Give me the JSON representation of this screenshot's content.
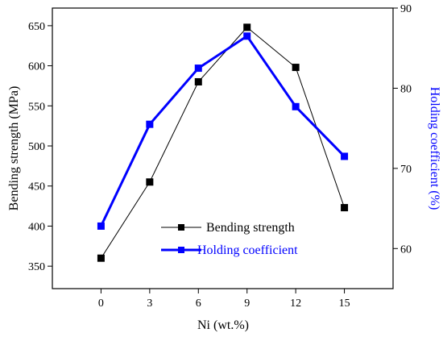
{
  "chart_data": {
    "type": "line",
    "x": [
      0,
      3,
      6,
      9,
      12,
      15
    ],
    "x_ticks": [
      "0",
      "3",
      "6",
      "9",
      "12",
      "15"
    ],
    "xlabel": "Ni (wt.%)",
    "xlim": [
      -3,
      18
    ],
    "left_axis": {
      "label": "Bending strength (MPa)",
      "ylim": [
        322,
        672
      ],
      "ticks": [
        "350",
        "400",
        "450",
        "500",
        "550",
        "600",
        "650"
      ],
      "color": "#000000"
    },
    "right_axis": {
      "label": "Holding coefficient (%)",
      "ylim": [
        55,
        90
      ],
      "ticks": [
        "60",
        "70",
        "80",
        "90"
      ],
      "color": "#0000ff"
    },
    "series": [
      {
        "name": "Bending strength",
        "axis": "left",
        "color": "#000000",
        "values": [
          360,
          455,
          580,
          648,
          598,
          423
        ]
      },
      {
        "name": "Holding coefficient",
        "axis": "right",
        "color": "#0000ff",
        "values": [
          62.8,
          75.5,
          82.5,
          86.5,
          77.7,
          71.5
        ]
      }
    ],
    "legend_placement": "bottom-center",
    "grid": false
  }
}
